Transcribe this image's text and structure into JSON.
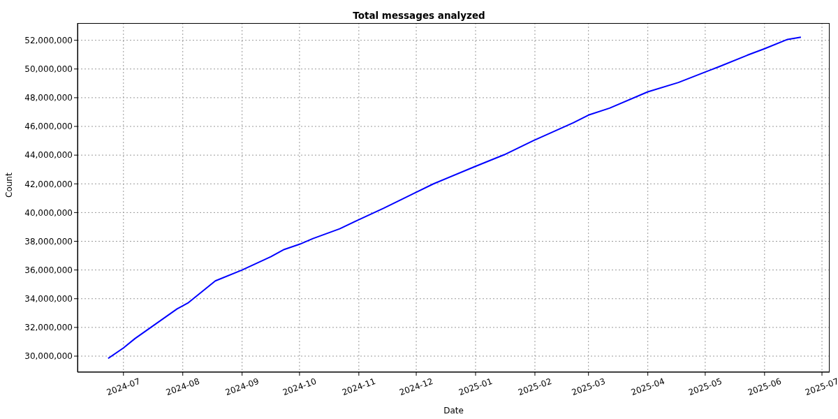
{
  "chart_data": {
    "type": "line",
    "title": "Total messages analyzed",
    "xlabel": "Date",
    "ylabel": "Count",
    "x": [
      "2024-06-23",
      "2024-07-01",
      "2024-07-07",
      "2024-07-29",
      "2024-08-04",
      "2024-08-18",
      "2024-09-01",
      "2024-09-16",
      "2024-09-23",
      "2024-10-01",
      "2024-10-08",
      "2024-10-22",
      "2024-10-31",
      "2024-11-14",
      "2024-11-30",
      "2024-12-10",
      "2024-12-31",
      "2025-01-16",
      "2025-01-31",
      "2025-02-21",
      "2025-03-01",
      "2025-03-12",
      "2025-04-01",
      "2025-04-17",
      "2025-05-01",
      "2025-05-08",
      "2025-05-23",
      "2025-06-01",
      "2025-06-13",
      "2025-06-20"
    ],
    "series": [
      {
        "color": "#0000ff",
        "values": [
          29840000,
          30570000,
          31220000,
          33290000,
          33730000,
          35240000,
          36000000,
          36920000,
          37430000,
          37790000,
          38190000,
          38870000,
          39440000,
          40300000,
          41350000,
          42000000,
          43170000,
          44030000,
          45000000,
          46250000,
          46790000,
          47270000,
          48410000,
          49060000,
          49790000,
          50150000,
          50960000,
          51410000,
          52060000,
          52220000
        ]
      }
    ],
    "xlim": [
      "2024-06-07",
      "2025-07-05"
    ],
    "xticks": [
      "2024-07",
      "2024-08",
      "2024-09",
      "2024-10",
      "2024-11",
      "2024-12",
      "2025-01",
      "2025-02",
      "2025-03",
      "2025-04",
      "2025-05",
      "2025-06",
      "2025-07"
    ],
    "ylim": [
      28880000,
      53200000
    ],
    "yticks": [
      {
        "value": 30000000,
        "label": "30,000,000"
      },
      {
        "value": 32000000,
        "label": "32,000,000"
      },
      {
        "value": 34000000,
        "label": "34,000,000"
      },
      {
        "value": 36000000,
        "label": "36,000,000"
      },
      {
        "value": 38000000,
        "label": "38,000,000"
      },
      {
        "value": 40000000,
        "label": "40,000,000"
      },
      {
        "value": 42000000,
        "label": "42,000,000"
      },
      {
        "value": 44000000,
        "label": "44,000,000"
      },
      {
        "value": 46000000,
        "label": "46,000,000"
      },
      {
        "value": 48000000,
        "label": "48,000,000"
      },
      {
        "value": 50000000,
        "label": "50,000,000"
      },
      {
        "value": 52000000,
        "label": "52,000,000"
      }
    ],
    "grid": true,
    "legend": false,
    "marker": "none",
    "line_style": "solid"
  }
}
